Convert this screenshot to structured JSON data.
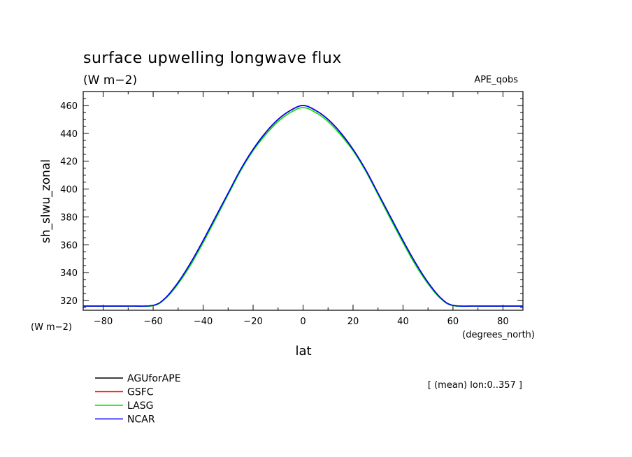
{
  "chart_data": {
    "type": "line",
    "title": "surface upwelling longwave flux",
    "units_label": "(W m−2)",
    "dataset_label": "APE_qobs",
    "ylabel": "sh_slwu_zonal",
    "y_units_label": "(W m−2)",
    "xlabel": "lat",
    "x_units_label": "(degrees_north)",
    "note": "[ (mean) lon:0..357 ]",
    "xlim": [
      -88,
      88
    ],
    "ylim": [
      313,
      470
    ],
    "x_ticks": [
      -80,
      -60,
      -40,
      -20,
      0,
      20,
      40,
      60,
      80
    ],
    "x_tick_labels": [
      "−80",
      "−60",
      "−40",
      "−20",
      "0",
      "20",
      "40",
      "60",
      "80"
    ],
    "y_ticks": [
      320,
      340,
      360,
      380,
      400,
      420,
      440,
      460
    ],
    "y_tick_labels": [
      "320",
      "340",
      "360",
      "380",
      "400",
      "420",
      "440",
      "460"
    ],
    "x": [
      -88,
      -80,
      -70,
      -60,
      -55,
      -50,
      -45,
      -40,
      -35,
      -30,
      -25,
      -20,
      -15,
      -10,
      -5,
      0,
      5,
      10,
      15,
      20,
      25,
      30,
      35,
      40,
      45,
      50,
      55,
      60,
      70,
      80,
      88
    ],
    "series": [
      {
        "name": "AGUforAPE",
        "color": "#000000",
        "values": [
          316,
          316,
          316,
          316.5,
          322,
          333,
          347,
          363,
          380,
          397,
          414,
          428.5,
          440.5,
          450,
          456.5,
          460,
          456.5,
          450,
          440.5,
          428.5,
          414,
          397,
          380,
          363,
          347,
          333,
          322,
          316.5,
          316,
          316,
          316
        ]
      },
      {
        "name": "GSFC",
        "color": "#ff0000",
        "values": [
          316,
          316,
          316,
          316.5,
          322,
          333,
          347,
          363,
          380,
          397,
          414,
          428.5,
          440.5,
          450,
          456.5,
          460,
          456.5,
          450,
          440.5,
          428.5,
          414,
          397,
          380,
          363,
          347,
          333,
          322,
          316.5,
          316,
          316,
          316
        ]
      },
      {
        "name": "LASG",
        "color": "#00dd00",
        "values": [
          316,
          316,
          316,
          316.3,
          321.5,
          332,
          345.5,
          361.5,
          378.5,
          396,
          413,
          427.5,
          439,
          448.5,
          455,
          458.5,
          455,
          448.5,
          439,
          427.5,
          413,
          396,
          378.5,
          361.5,
          345.5,
          332,
          321.5,
          316.3,
          316,
          316,
          316
        ]
      },
      {
        "name": "NCAR",
        "color": "#0000ff",
        "values": [
          316,
          316,
          316,
          316.5,
          322,
          333,
          347,
          363,
          380,
          397,
          414,
          428.5,
          440.5,
          450,
          456.5,
          460,
          456.5,
          450,
          440.5,
          428.5,
          414,
          397,
          380,
          363,
          347,
          333,
          322,
          316.5,
          316,
          316,
          316
        ]
      }
    ]
  }
}
